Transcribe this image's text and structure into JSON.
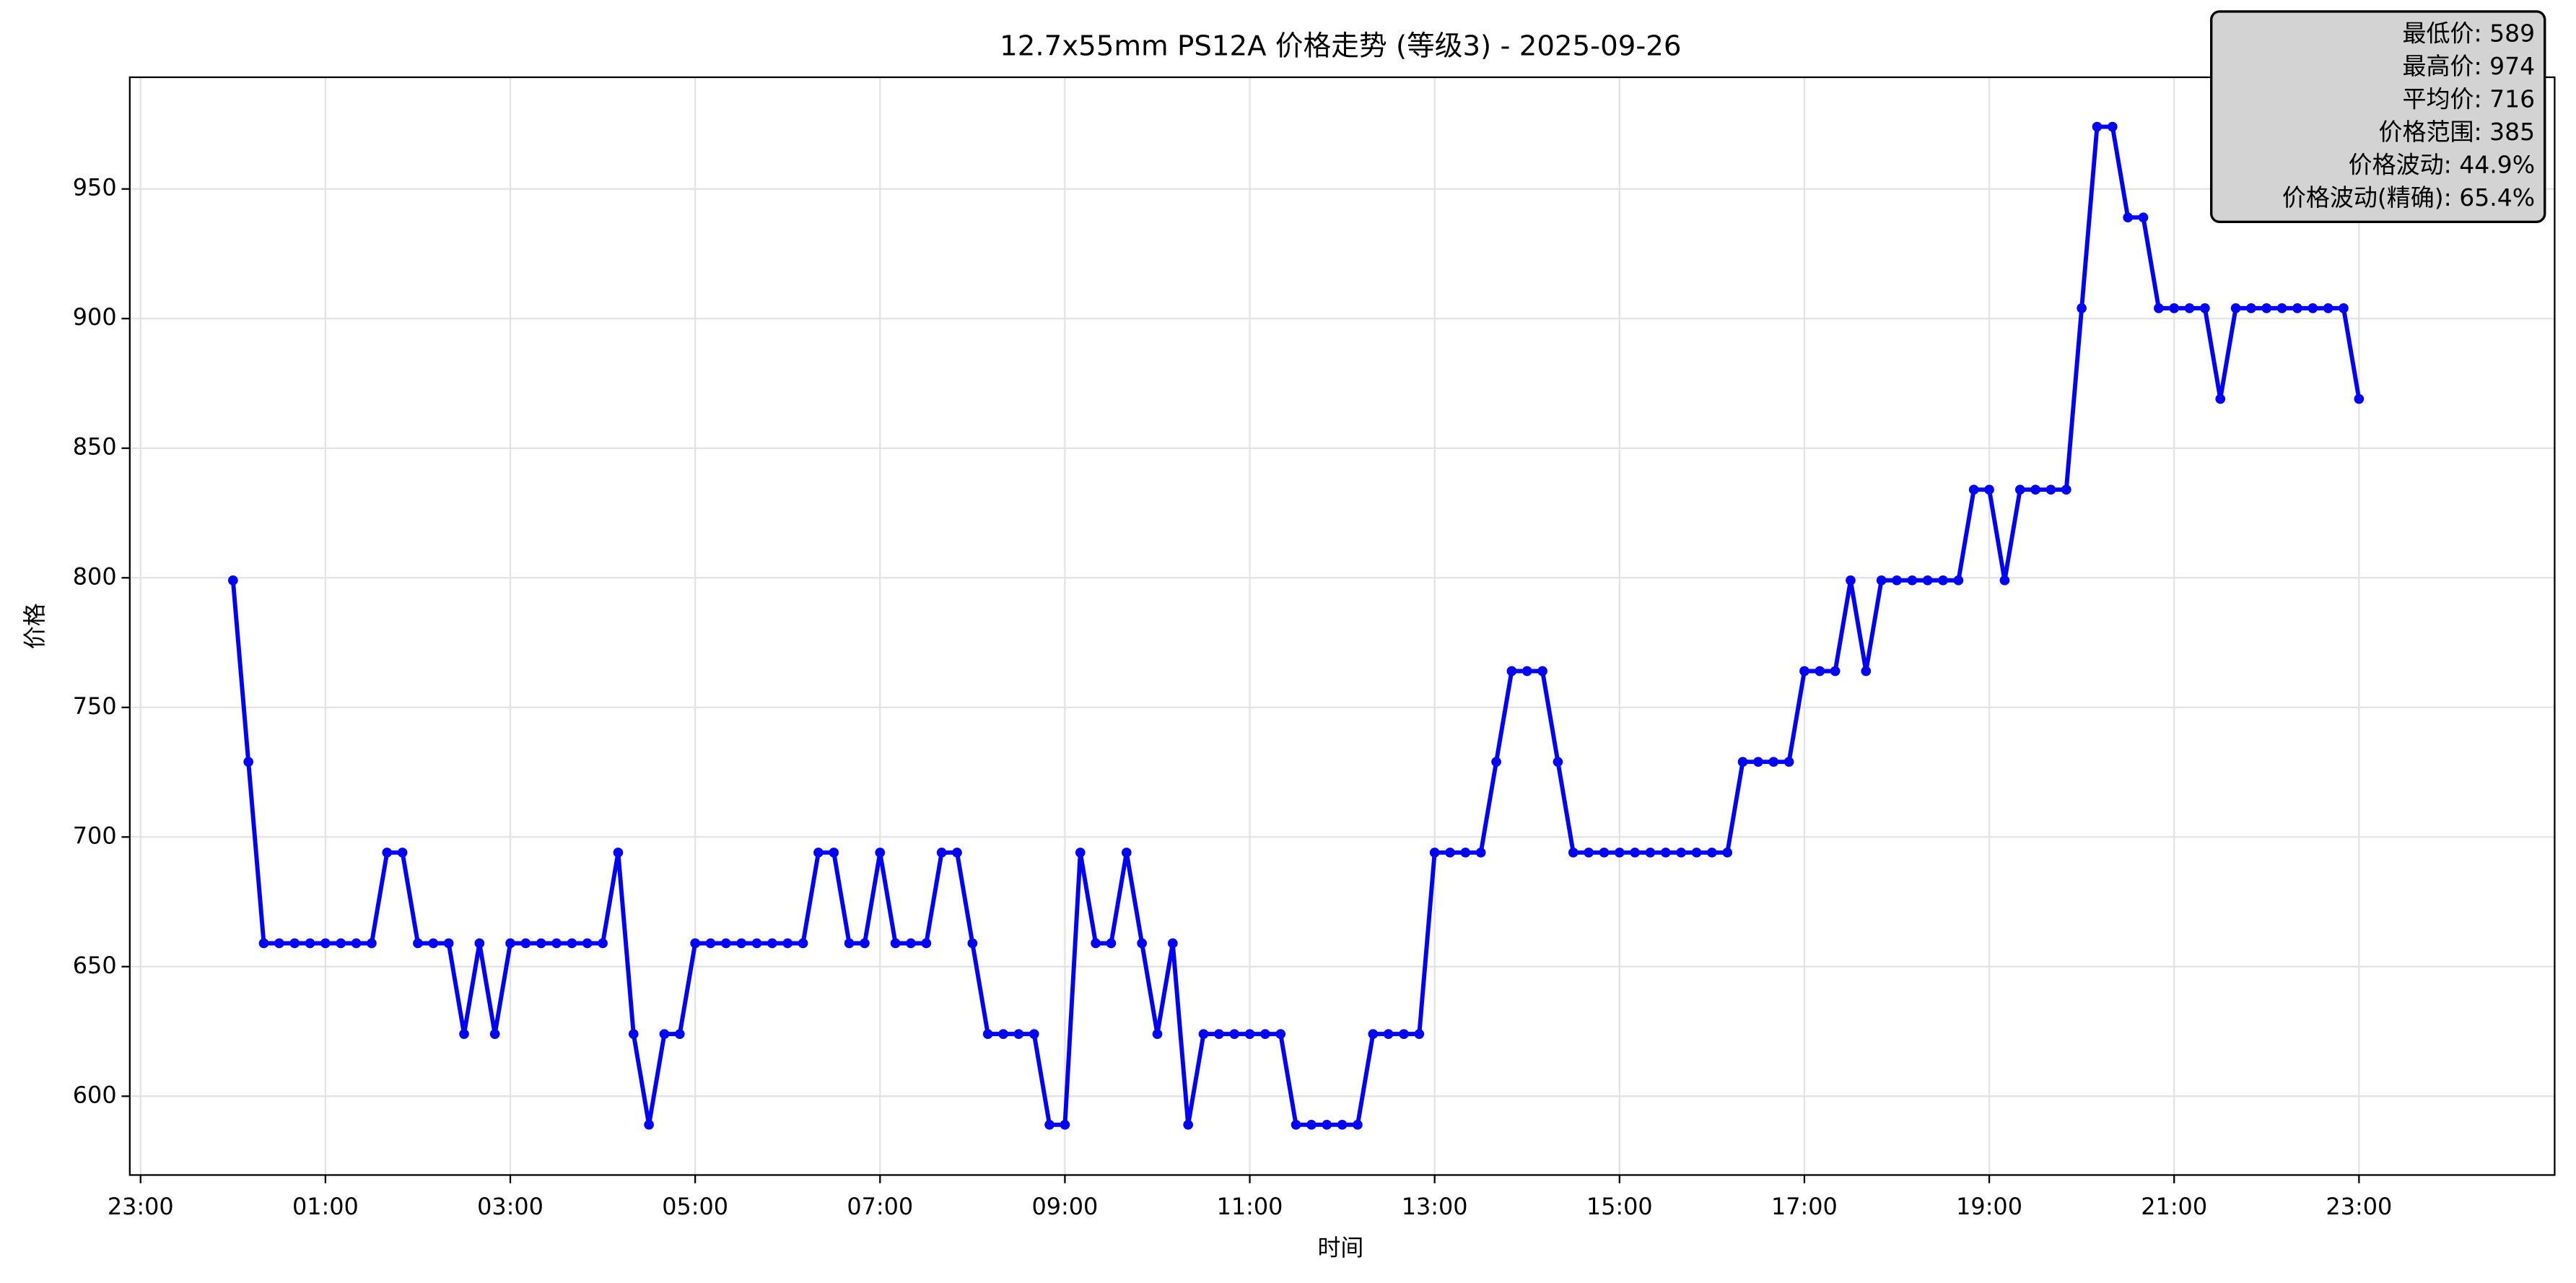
{
  "chart_data": {
    "type": "line",
    "title": "12.7x55mm PS12A 价格走势 (等级3) - 2025-09-26",
    "xlabel": "时间",
    "ylabel": "价格",
    "x": [
      0,
      10,
      20,
      30,
      40,
      50,
      60,
      70,
      80,
      90,
      100,
      110,
      120,
      130,
      140,
      150,
      160,
      170,
      180,
      190,
      200,
      210,
      220,
      230,
      240,
      250,
      260,
      270,
      280,
      290,
      300,
      310,
      320,
      330,
      340,
      350,
      360,
      370,
      380,
      390,
      400,
      410,
      420,
      430,
      440,
      450,
      460,
      470,
      480,
      490,
      500,
      510,
      520,
      530,
      540,
      550,
      560,
      570,
      580,
      590,
      600,
      610,
      620,
      630,
      640,
      650,
      660,
      670,
      680,
      690,
      700,
      710,
      720,
      730,
      740,
      750,
      760,
      770,
      780,
      790,
      800,
      810,
      820,
      830,
      840,
      850,
      860,
      870,
      880,
      890,
      900,
      910,
      920,
      930,
      940,
      950,
      960,
      970,
      980,
      990,
      1000,
      1010,
      1020,
      1030,
      1040,
      1050,
      1060,
      1070,
      1080,
      1090,
      1100,
      1110,
      1120,
      1130,
      1140,
      1150,
      1160,
      1170,
      1180,
      1190,
      1200,
      1210,
      1220,
      1230,
      1240,
      1250,
      1260,
      1270,
      1280,
      1290,
      1300,
      1310,
      1320,
      1330,
      1340,
      1350,
      1360,
      1370,
      1380
    ],
    "series": [
      {
        "color": "#0000ff",
        "values": [
          799,
          729,
          659,
          659,
          659,
          659,
          659,
          659,
          659,
          659,
          694,
          694,
          659,
          659,
          659,
          624,
          659,
          624,
          659,
          659,
          659,
          659,
          659,
          659,
          659,
          694,
          624,
          589,
          624,
          624,
          659,
          659,
          659,
          659,
          659,
          659,
          659,
          659,
          694,
          694,
          659,
          659,
          694,
          659,
          659,
          659,
          694,
          694,
          659,
          624,
          624,
          624,
          624,
          589,
          589,
          694,
          659,
          659,
          694,
          659,
          624,
          659,
          589,
          624,
          624,
          624,
          624,
          624,
          624,
          589,
          589,
          589,
          589,
          589,
          624,
          624,
          624,
          624,
          694,
          694,
          694,
          694,
          729,
          764,
          764,
          764,
          729,
          694,
          694,
          694,
          694,
          694,
          694,
          694,
          694,
          694,
          694,
          694,
          729,
          729,
          729,
          729,
          764,
          764,
          764,
          799,
          764,
          799,
          799,
          799,
          799,
          799,
          799,
          834,
          834,
          799,
          834,
          834,
          834,
          834,
          904,
          974,
          974,
          939,
          939,
          904,
          904,
          904,
          904,
          869,
          904,
          904,
          904,
          904,
          904,
          904,
          904,
          904,
          869
        ]
      }
    ],
    "xlim": [
      -67,
      1507
    ],
    "ylim": [
      569.6,
      993.1
    ],
    "xticks": [
      {
        "value": -60,
        "label": "23:00"
      },
      {
        "value": 60,
        "label": "01:00"
      },
      {
        "value": 180,
        "label": "03:00"
      },
      {
        "value": 300,
        "label": "05:00"
      },
      {
        "value": 420,
        "label": "07:00"
      },
      {
        "value": 540,
        "label": "09:00"
      },
      {
        "value": 660,
        "label": "11:00"
      },
      {
        "value": 780,
        "label": "13:00"
      },
      {
        "value": 900,
        "label": "15:00"
      },
      {
        "value": 1020,
        "label": "17:00"
      },
      {
        "value": 1140,
        "label": "19:00"
      },
      {
        "value": 1260,
        "label": "21:00"
      },
      {
        "value": 1380,
        "label": "23:00"
      }
    ],
    "yticks": [
      600,
      650,
      700,
      750,
      800,
      850,
      900,
      950
    ],
    "grid": true,
    "stats": [
      "最低价: 589",
      "最高价: 974",
      "平均价: 716",
      "价格范围: 385",
      "价格波动: 44.9%",
      "价格波动(精确): 65.4%"
    ]
  }
}
